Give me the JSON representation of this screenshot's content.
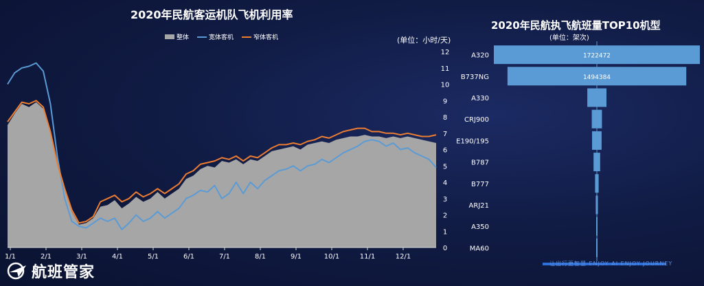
{
  "left_chart": {
    "title": "2020年民航客运机队飞机利用率",
    "unit": "(单位：小时/天)",
    "legend": [
      "整体",
      "宽体客机",
      "窄体客机"
    ],
    "colors": {
      "overall": "#a6a6a6",
      "wide": "#5b9bd5",
      "narrow": "#ed7d31"
    }
  },
  "right_chart": {
    "title": "2020年民航执飞航班量TOP10机型",
    "unit": "(单位：架次)",
    "bar_color": "#5b9bd5"
  },
  "brand": {
    "name": "航班管家",
    "slogan": "让出行更智慧  ENJOY AI  ENJOY JOURNEY"
  },
  "chart_data": [
    {
      "type": "area",
      "title": "2020年民航客运机队飞机利用率",
      "ylabel": "(单位：小时/天)",
      "ylim": [
        0,
        12
      ],
      "yticks": [
        0,
        1,
        2,
        3,
        4,
        5,
        6,
        7,
        8,
        9,
        10,
        11,
        12
      ],
      "x_ticks": [
        "1/1",
        "2/1",
        "3/1",
        "4/1",
        "5/1",
        "6/1",
        "7/1",
        "8/1",
        "9/1",
        "10/1",
        "11/1",
        "12/1"
      ],
      "grid": false,
      "legend_position": "top",
      "series": [
        {
          "name": "整体",
          "kind": "area",
          "values": [
            7.5,
            8.2,
            8.8,
            8.6,
            8.9,
            8.5,
            7.0,
            5.0,
            3.5,
            2.2,
            1.4,
            1.5,
            1.8,
            2.5,
            2.6,
            2.9,
            2.4,
            2.7,
            3.1,
            2.8,
            3.0,
            3.4,
            3.0,
            3.3,
            3.6,
            4.2,
            4.4,
            4.8,
            5.0,
            4.9,
            5.3,
            5.2,
            5.4,
            5.1,
            5.4,
            5.3,
            5.6,
            5.9,
            6.0,
            6.1,
            6.2,
            6.0,
            6.3,
            6.4,
            6.5,
            6.4,
            6.6,
            6.7,
            6.8,
            6.8,
            6.9,
            6.8,
            6.8,
            6.7,
            6.8,
            6.7,
            6.8,
            6.7,
            6.6,
            6.5,
            6.4
          ]
        },
        {
          "name": "宽体客机",
          "kind": "line",
          "values": [
            10.0,
            10.7,
            11.0,
            11.1,
            11.3,
            10.8,
            8.8,
            5.5,
            3.0,
            1.6,
            1.3,
            1.2,
            1.5,
            1.8,
            1.6,
            1.8,
            1.1,
            1.5,
            2.0,
            1.6,
            1.8,
            2.2,
            1.8,
            2.1,
            2.4,
            3.0,
            3.2,
            3.5,
            3.4,
            3.8,
            3.0,
            3.3,
            4.0,
            3.3,
            4.0,
            3.6,
            4.1,
            4.4,
            4.7,
            4.8,
            5.0,
            4.7,
            5.0,
            5.1,
            5.4,
            5.2,
            5.5,
            5.8,
            6.0,
            6.2,
            6.5,
            6.6,
            6.5,
            6.2,
            6.4,
            6.0,
            6.1,
            5.8,
            5.6,
            5.4,
            4.9
          ]
        },
        {
          "name": "窄体客机",
          "kind": "line",
          "values": [
            7.7,
            8.3,
            8.9,
            8.8,
            9.0,
            8.6,
            7.1,
            5.1,
            3.6,
            2.3,
            1.5,
            1.6,
            1.9,
            2.8,
            3.0,
            3.2,
            2.8,
            3.0,
            3.4,
            3.1,
            3.3,
            3.6,
            3.3,
            3.6,
            3.9,
            4.5,
            4.7,
            5.1,
            5.2,
            5.3,
            5.5,
            5.4,
            5.6,
            5.3,
            5.6,
            5.5,
            5.8,
            6.1,
            6.3,
            6.3,
            6.4,
            6.3,
            6.5,
            6.6,
            6.8,
            6.7,
            6.9,
            7.1,
            7.2,
            7.3,
            7.3,
            7.1,
            7.1,
            7.0,
            7.0,
            6.9,
            7.0,
            6.9,
            6.8,
            6.8,
            6.9
          ]
        }
      ]
    },
    {
      "type": "bar",
      "orientation": "horizontal",
      "title": "2020年民航执飞航班量TOP10机型",
      "ylabel": "(单位：架次)",
      "categories": [
        "A320",
        "B737NG",
        "A330",
        "CRJ900",
        "E190/195",
        "B787",
        "B777",
        "ARJ21",
        "A350",
        "MA60"
      ],
      "values": [
        1722472,
        1494384,
        160000,
        85000,
        80000,
        55000,
        30000,
        18000,
        10000,
        6000
      ],
      "data_labels": [
        "1722472",
        "1494384",
        "",
        "",
        "",
        "",
        "",
        "",
        "",
        ""
      ]
    }
  ]
}
